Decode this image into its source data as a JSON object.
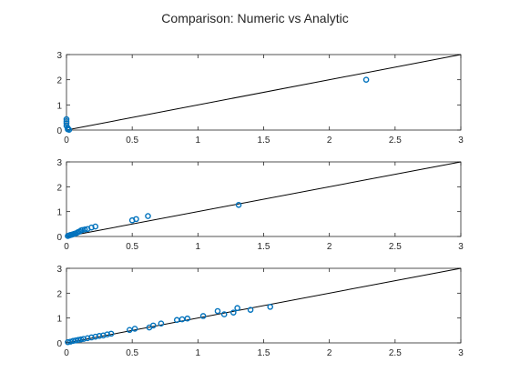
{
  "figure": {
    "title": "Comparison: Numeric vs Analytic",
    "marker_color": "#0072BD",
    "line_color": "#000000",
    "axis_color": "#262626"
  },
  "chart_data": [
    {
      "type": "scatter",
      "title": "",
      "xlabel": "",
      "ylabel": "",
      "xlim": [
        0,
        3
      ],
      "ylim": [
        0,
        3
      ],
      "xticks": [
        0,
        0.5,
        1,
        1.5,
        2,
        2.5,
        3
      ],
      "xtick_labels": [
        "0",
        "0.5",
        "1",
        "1.5",
        "2",
        "2.5",
        "3"
      ],
      "yticks": [
        0,
        1,
        2,
        3
      ],
      "ytick_labels": [
        "0",
        "1",
        "2",
        "3"
      ],
      "grid": false,
      "reference_line": {
        "x": [
          0,
          3
        ],
        "y": [
          0,
          3
        ]
      },
      "series": [
        {
          "marker": "circle",
          "x": [
            0.0,
            0.0,
            0.0,
            0.0,
            0.01,
            0.01,
            0.02,
            2.28
          ],
          "y": [
            0.43,
            0.35,
            0.27,
            0.17,
            0.08,
            0.03,
            0.01,
            2.0
          ]
        }
      ]
    },
    {
      "type": "scatter",
      "title": "",
      "xlabel": "",
      "ylabel": "",
      "xlim": [
        0,
        3
      ],
      "ylim": [
        0,
        3
      ],
      "xticks": [
        0,
        0.5,
        1,
        1.5,
        2,
        2.5,
        3
      ],
      "xtick_labels": [
        "0",
        "0.5",
        "1",
        "1.5",
        "2",
        "2.5",
        "3"
      ],
      "yticks": [
        0,
        1,
        2,
        3
      ],
      "ytick_labels": [
        "0",
        "1",
        "2",
        "3"
      ],
      "grid": false,
      "reference_line": {
        "x": [
          0,
          3
        ],
        "y": [
          0,
          3
        ]
      },
      "series": [
        {
          "marker": "circle",
          "x": [
            0.01,
            0.02,
            0.03,
            0.04,
            0.05,
            0.06,
            0.07,
            0.08,
            0.09,
            0.1,
            0.11,
            0.12,
            0.14,
            0.16,
            0.19,
            0.22,
            0.5,
            0.53,
            0.62,
            1.31
          ],
          "y": [
            0.02,
            0.04,
            0.06,
            0.07,
            0.09,
            0.11,
            0.12,
            0.15,
            0.18,
            0.2,
            0.24,
            0.26,
            0.28,
            0.3,
            0.36,
            0.4,
            0.65,
            0.7,
            0.82,
            1.27
          ]
        }
      ]
    },
    {
      "type": "scatter",
      "title": "",
      "xlabel": "",
      "ylabel": "",
      "xlim": [
        0,
        3
      ],
      "ylim": [
        0,
        3
      ],
      "xticks": [
        0,
        0.5,
        1,
        1.5,
        2,
        2.5,
        3
      ],
      "xtick_labels": [
        "0",
        "0.5",
        "1",
        "1.5",
        "2",
        "2.5",
        "3"
      ],
      "yticks": [
        0,
        1,
        2,
        3
      ],
      "ytick_labels": [
        "0",
        "1",
        "2",
        "3"
      ],
      "grid": false,
      "reference_line": {
        "x": [
          0,
          3
        ],
        "y": [
          0,
          3
        ]
      },
      "series": [
        {
          "marker": "circle",
          "x": [
            0.01,
            0.03,
            0.05,
            0.07,
            0.09,
            0.11,
            0.13,
            0.16,
            0.19,
            0.22,
            0.25,
            0.28,
            0.31,
            0.34,
            0.48,
            0.52,
            0.63,
            0.66,
            0.72,
            0.84,
            0.88,
            0.92,
            1.04,
            1.15,
            1.2,
            1.27,
            1.3,
            1.4,
            1.55
          ],
          "y": [
            0.03,
            0.05,
            0.08,
            0.1,
            0.12,
            0.14,
            0.16,
            0.19,
            0.22,
            0.25,
            0.28,
            0.3,
            0.34,
            0.37,
            0.52,
            0.57,
            0.62,
            0.7,
            0.78,
            0.92,
            0.95,
            0.98,
            1.08,
            1.28,
            1.15,
            1.22,
            1.4,
            1.33,
            1.45
          ]
        }
      ]
    }
  ]
}
